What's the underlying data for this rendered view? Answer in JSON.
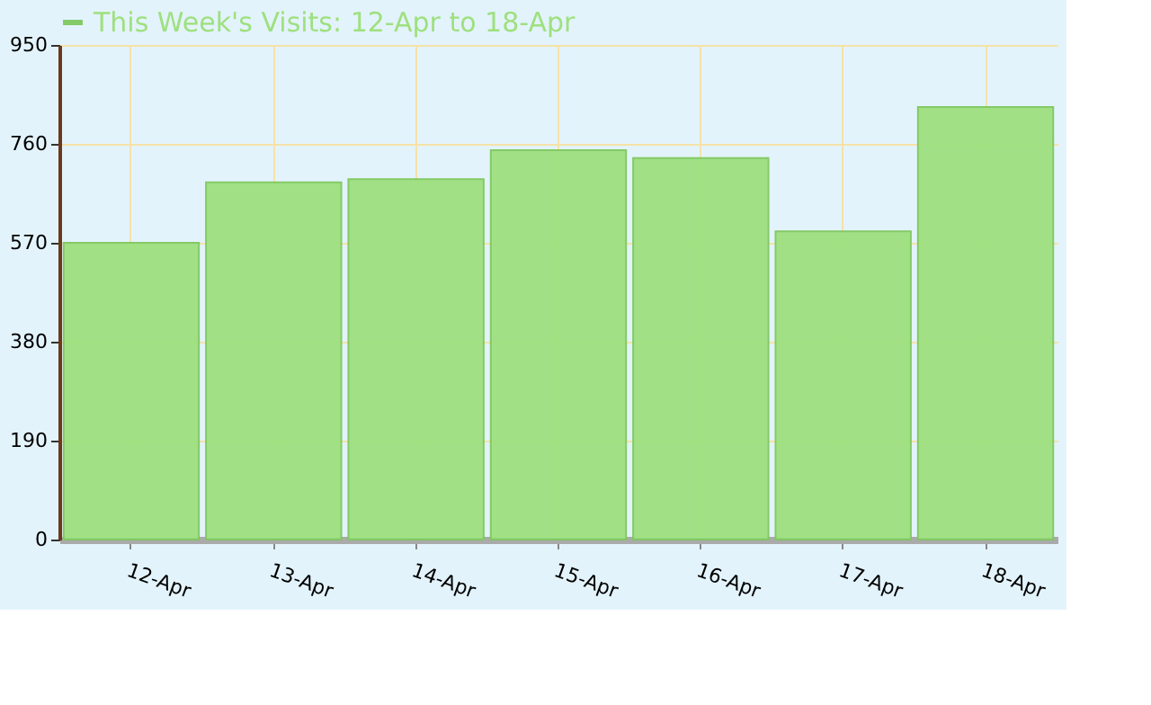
{
  "chart_data": {
    "type": "bar",
    "categories": [
      "12-Apr",
      "13-Apr",
      "14-Apr",
      "15-Apr",
      "16-Apr",
      "17-Apr",
      "18-Apr"
    ],
    "series": [
      {
        "name": "This Week's Visits: 12-Apr to 18-Apr",
        "color": "#9ee07f",
        "values": [
          570,
          686,
          692,
          748,
          733,
          592,
          831
        ]
      }
    ],
    "ylim": [
      0,
      950
    ],
    "yticks": [
      0,
      190,
      380,
      570,
      760,
      950
    ],
    "grid": true,
    "legend": "top left"
  }
}
